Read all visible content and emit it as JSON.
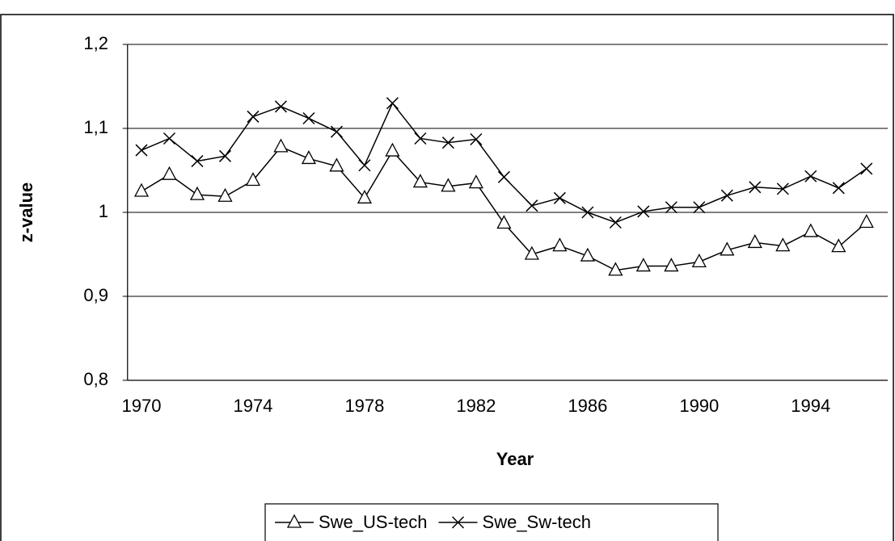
{
  "chart_data": {
    "type": "line",
    "x_label": "Year",
    "y_label": "z-value",
    "categories": [
      "1970",
      null,
      null,
      null,
      "1974",
      null,
      null,
      null,
      "1978",
      null,
      null,
      null,
      "1982",
      null,
      null,
      null,
      "1986",
      null,
      null,
      null,
      "1990",
      null,
      null,
      null,
      "1994",
      null,
      null
    ],
    "series": [
      {
        "name": "Swe_US-tech",
        "color": "#000000",
        "marker": "triangle",
        "values": [
          1.025,
          1.045,
          1.021,
          1.019,
          1.038,
          1.078,
          1.064,
          1.055,
          1.017,
          1.073,
          1.036,
          1.031,
          1.035,
          0.987,
          0.95,
          0.96,
          0.948,
          0.931,
          0.936,
          0.936,
          0.941,
          0.955,
          0.964,
          0.96,
          0.977,
          0.959,
          0.988
        ]
      },
      {
        "name": "Swe_Sw-tech",
        "color": "#000000",
        "marker": "x",
        "values": [
          1.074,
          1.088,
          1.061,
          1.067,
          1.114,
          1.126,
          1.112,
          1.096,
          1.056,
          1.13,
          1.088,
          1.083,
          1.087,
          1.042,
          1.008,
          1.017,
          1.0,
          0.988,
          1.001,
          1.006,
          1.006,
          1.02,
          1.03,
          1.028,
          1.043,
          1.029,
          1.052
        ]
      }
    ],
    "ylim": [
      0.8,
      1.2
    ],
    "yticks": [
      {
        "value": 0.8,
        "label": "0,8"
      },
      {
        "value": 0.9,
        "label": "0,9"
      },
      1,
      {
        "value": 1.1,
        "label": "1,1"
      },
      {
        "value": 1.2,
        "label": "1,2"
      }
    ],
    "grid": true,
    "legend": "bottom"
  }
}
